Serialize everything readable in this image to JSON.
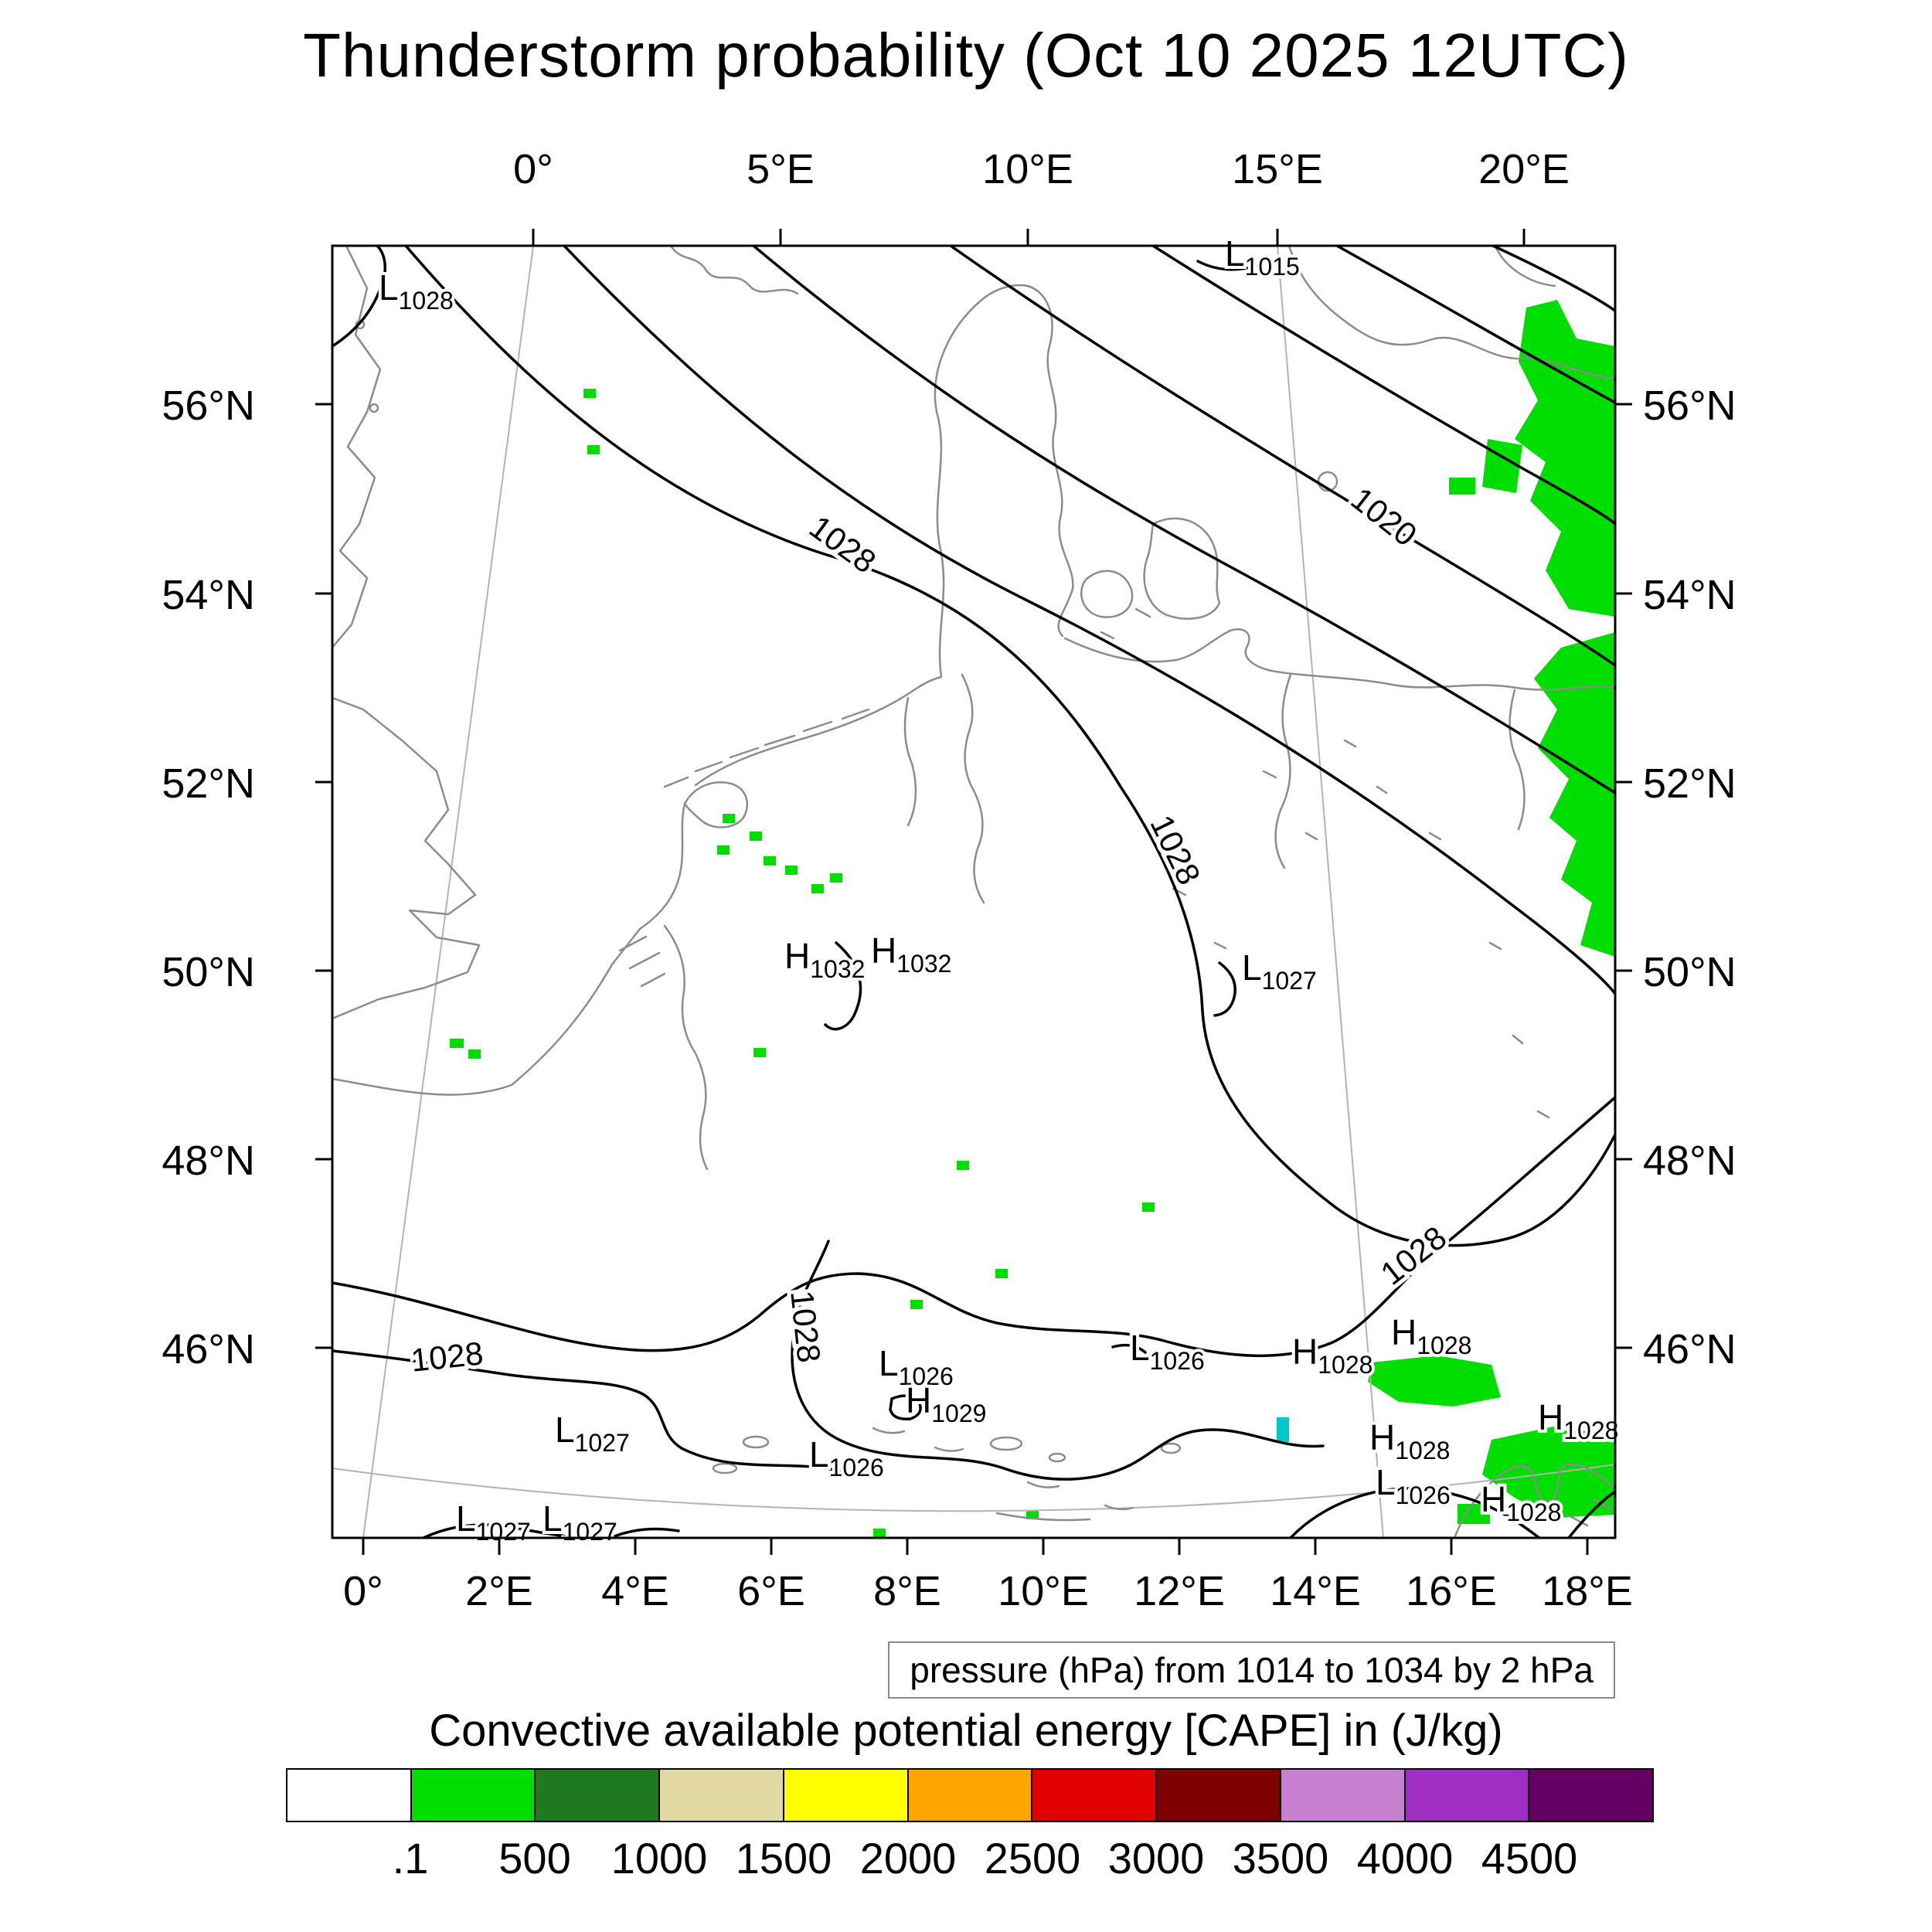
{
  "title": "Thunderstorm probability (Oct 10 2025 12UTC)",
  "axes": {
    "top": [
      "0°",
      "5°E",
      "10°E",
      "15°E",
      "20°E"
    ],
    "bottom": [
      "0°",
      "2°E",
      "4°E",
      "6°E",
      "8°E",
      "10°E",
      "12°E",
      "14°E",
      "16°E",
      "18°E"
    ],
    "left": [
      "56°N",
      "54°N",
      "52°N",
      "50°N",
      "48°N",
      "46°N"
    ],
    "right": [
      "56°N",
      "54°N",
      "52°N",
      "50°N",
      "48°N",
      "46°N"
    ]
  },
  "pressure_note": "pressure (hPa) from 1014 to 1034 by 2 hPa",
  "colorbar": {
    "title": "Convective available potential energy [CAPE] in (J/kg)",
    "labels": [
      ".1",
      "500",
      "1000",
      "1500",
      "2000",
      "2500",
      "3000",
      "3500",
      "4000",
      "4500"
    ],
    "colors": [
      "#ffffff",
      "#00dd00",
      "#1f7a1f",
      "#e2d9a2",
      "#ffff00",
      "#ffa500",
      "#e00000",
      "#7e0000",
      "#c77fd0",
      "#a02ec4",
      "#640064"
    ]
  },
  "contour_labels": [
    "1028",
    "1020",
    "1028",
    "1028",
    "1028",
    "1028"
  ],
  "pressure_centers": [
    {
      "letter": "L",
      "value": "1028"
    },
    {
      "letter": "L",
      "value": "1015"
    },
    {
      "letter": "H",
      "value": "1032"
    },
    {
      "letter": "H",
      "value": "1032"
    },
    {
      "letter": "L",
      "value": "1027"
    },
    {
      "letter": "L",
      "value": "1027"
    },
    {
      "letter": "L",
      "value": "1026"
    },
    {
      "letter": "L",
      "value": "1026"
    },
    {
      "letter": "H",
      "value": "1029"
    },
    {
      "letter": "L",
      "value": "1026"
    },
    {
      "letter": "H",
      "value": "1028"
    },
    {
      "letter": "H",
      "value": "1028"
    },
    {
      "letter": "H",
      "value": "1028"
    },
    {
      "letter": "L",
      "value": "1026"
    },
    {
      "letter": "H",
      "value": "1028"
    },
    {
      "letter": "H",
      "value": "1028"
    },
    {
      "letter": "L",
      "value": "1027"
    },
    {
      "letter": "L",
      "value": "1027"
    }
  ],
  "map": {
    "cape_color": "#00dd00",
    "cyan_patch_color": "#00c8c8",
    "coast_color": "#8c8c8c",
    "contour_color": "#000000"
  },
  "chart_data": {
    "type": "map",
    "title": "Thunderstorm probability (Oct 10 2025 12UTC)",
    "region": {
      "lon_range": [
        "0°",
        "20°E"
      ],
      "lat_range": [
        "46°N",
        "56°N"
      ]
    },
    "pressure_contours_hpa": {
      "min": 1014,
      "max": 1034,
      "step": 2
    },
    "labeled_isobars": [
      1020,
      1028
    ],
    "cape_levels_jkg": [
      0.1,
      500,
      1000,
      1500,
      2000,
      2500,
      3000,
      3500,
      4000,
      4500
    ],
    "shaded_cape": "green (0.1–500 J/kg) along eastern map edge and scattered small patches; bottom-right patches near 16–18°E / 45–46°N",
    "pressure_centers": [
      {
        "type": "L",
        "value": 1028
      },
      {
        "type": "L",
        "value": 1015
      },
      {
        "type": "H",
        "value": 1032
      },
      {
        "type": "H",
        "value": 1032
      },
      {
        "type": "L",
        "value": 1027
      },
      {
        "type": "L",
        "value": 1027
      },
      {
        "type": "L",
        "value": 1026
      },
      {
        "type": "L",
        "value": 1026
      },
      {
        "type": "H",
        "value": 1029
      },
      {
        "type": "L",
        "value": 1026
      },
      {
        "type": "H",
        "value": 1028
      },
      {
        "type": "H",
        "value": 1028
      },
      {
        "type": "H",
        "value": 1028
      },
      {
        "type": "L",
        "value": 1026
      },
      {
        "type": "H",
        "value": 1028
      },
      {
        "type": "H",
        "value": 1028
      },
      {
        "type": "L",
        "value": 1027
      },
      {
        "type": "L",
        "value": 1027
      }
    ]
  }
}
